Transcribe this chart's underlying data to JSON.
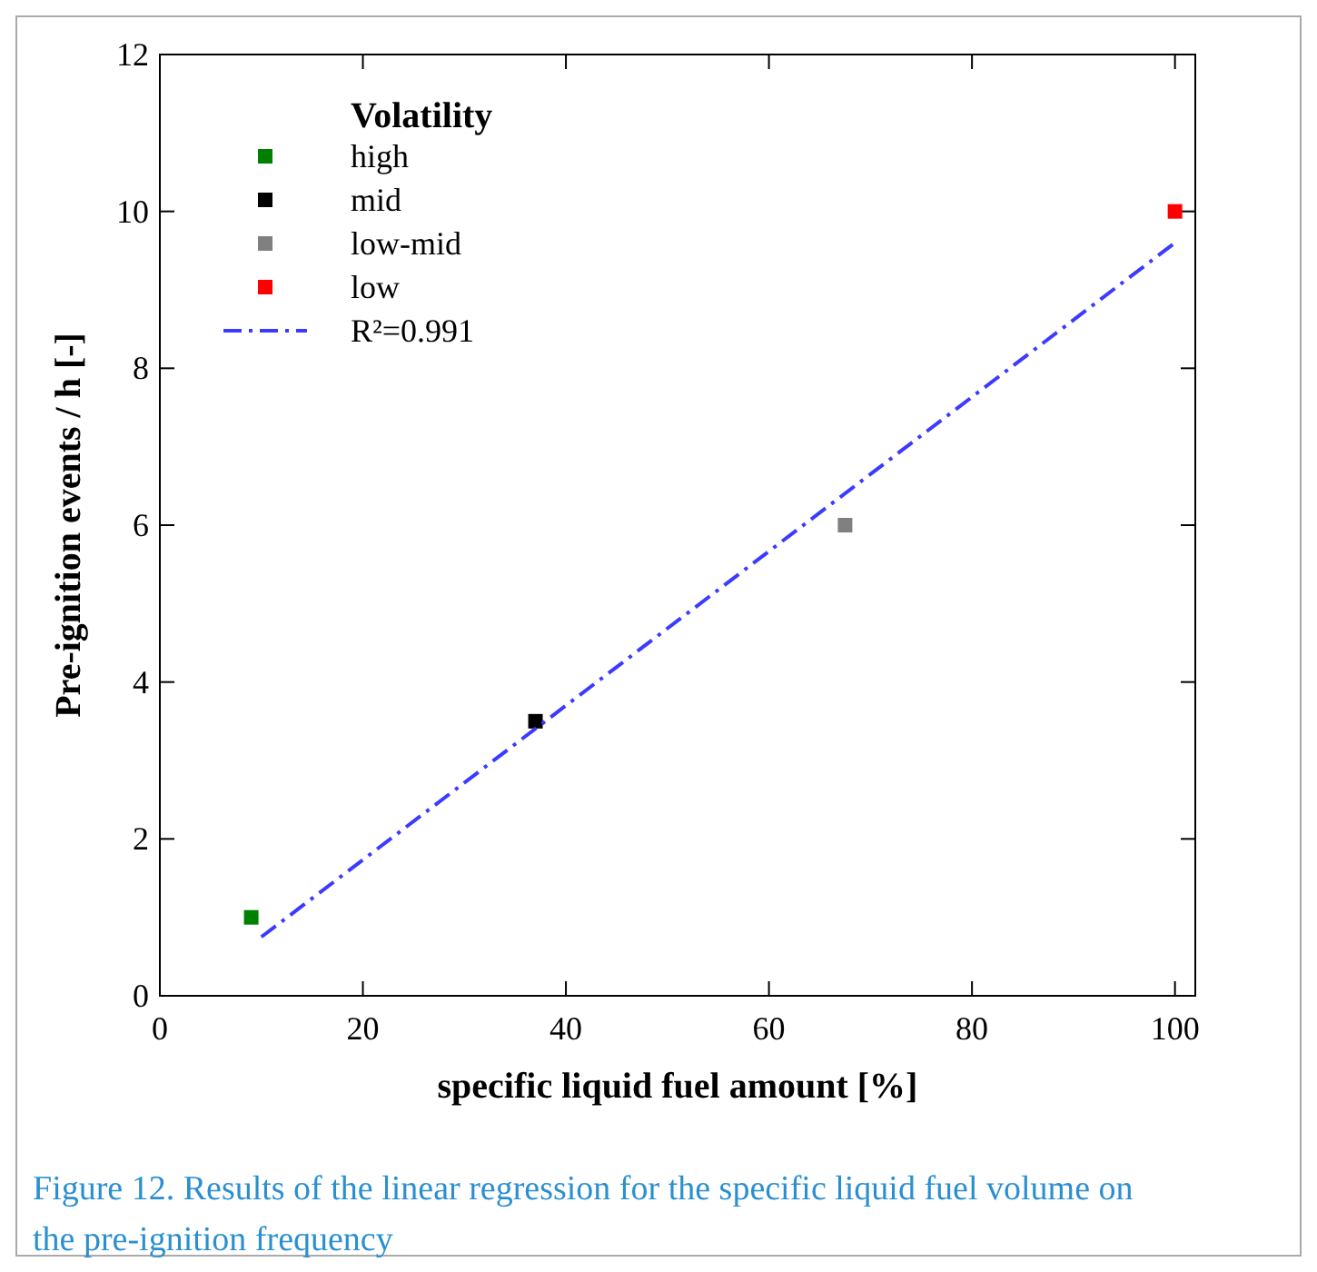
{
  "chart_data": {
    "type": "scatter",
    "xlabel": "specific liquid fuel amount [%]",
    "ylabel": "Pre-ignition events / h [-]",
    "legend_title": "Volatility",
    "legend": "top left",
    "marker": "square",
    "grid": false,
    "xlim": [
      0,
      102
    ],
    "xticks": [
      0,
      20,
      40,
      60,
      80,
      100
    ],
    "ylim": [
      0,
      12
    ],
    "yticks": [
      0,
      2,
      4,
      6,
      8,
      10,
      12
    ],
    "series": [
      {
        "name": "high",
        "color": "#008000",
        "x": [
          9
        ],
        "values": [
          1
        ]
      },
      {
        "name": "mid",
        "color": "#000000",
        "x": [
          37
        ],
        "values": [
          3.5
        ]
      },
      {
        "name": "low-mid",
        "color": "#808080",
        "x": [
          67.5
        ],
        "values": [
          6
        ]
      },
      {
        "name": "low",
        "color": "#ff0000",
        "x": [
          100
        ],
        "values": [
          10
        ]
      },
      {
        "name": "R²=0.991",
        "type": "line",
        "color": "#3b3bff",
        "line_style": "dashed",
        "marker": "none",
        "x": [
          10,
          100
        ],
        "values": [
          0.75,
          9.6
        ]
      }
    ],
    "annotations": [
      "Figure 12. Results of the linear regression for the specific liquid fuel volume on the pre-ignition frequency"
    ]
  }
}
